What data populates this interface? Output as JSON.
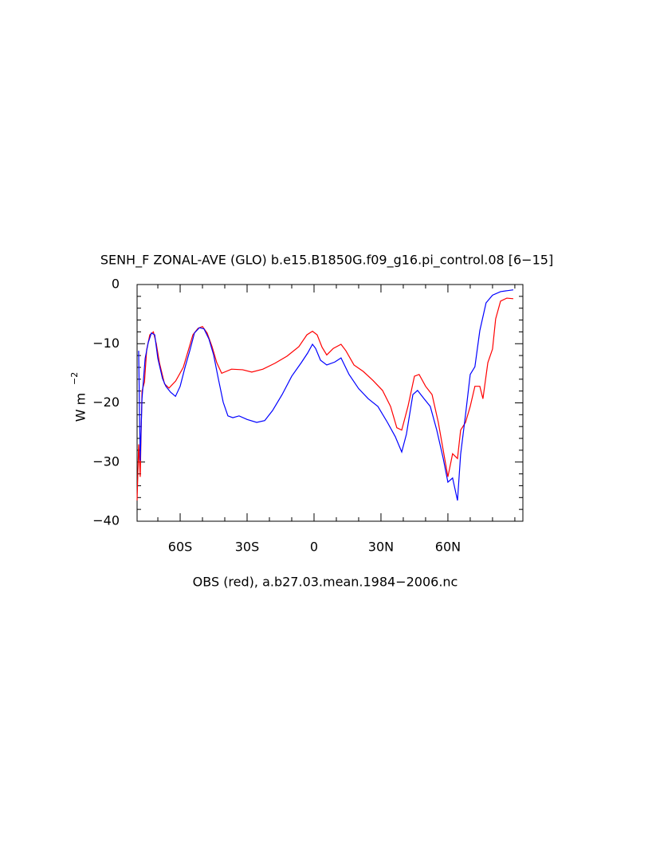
{
  "chart_data": {
    "type": "line",
    "title": "SENH_F ZONAL-AVE (GLO) b.e15.B1850G.f09_g16.pi_control.08 [6−15]",
    "xlabel": "OBS (red), a.b27.03.mean.1984−2006.nc",
    "ylabel": "W m",
    "ylabel_superscript": "−2",
    "xlim": [
      -79.3,
      93.6
    ],
    "ylim": [
      -40,
      0
    ],
    "xticks": [
      {
        "value": -60,
        "label": "60S"
      },
      {
        "value": -30,
        "label": "30S"
      },
      0,
      {
        "value": 30,
        "label": "30N"
      },
      {
        "value": 60,
        "label": "60N"
      }
    ],
    "xminor_ticks": [
      -70,
      -50,
      -40,
      -20,
      -10,
      10,
      20,
      40,
      50,
      70,
      80,
      90
    ],
    "yticks": [
      0,
      {
        "value": -10,
        "label": "−10"
      },
      {
        "value": -20,
        "label": "−20"
      },
      {
        "value": -30,
        "label": "−30"
      },
      {
        "value": -40,
        "label": "−40"
      }
    ],
    "yminor_ticks": [
      -2,
      -4,
      -6,
      -8,
      -12,
      -14,
      -16,
      -18,
      -22,
      -24,
      -26,
      -28,
      -32,
      -34,
      -36,
      -38
    ],
    "grid": false,
    "series": [
      {
        "color": "#ff0000",
        "x": [
          -79.3,
          -78.6,
          -77.9,
          -77.1,
          -76,
          -75,
          -73.6,
          -72,
          -70.7,
          -69.3,
          -67,
          -65,
          -62,
          -58.6,
          -56.4,
          -54.3,
          -52,
          -50,
          -47.9,
          -45.7,
          -43.6,
          -41.4,
          -37,
          -32,
          -27.9,
          -22.9,
          -17.5,
          -12.1,
          -6.8,
          -3.2,
          -0.7,
          1.4,
          3.6,
          5.7,
          8.6,
          12.1,
          14.3,
          17.9,
          22.1,
          26.4,
          30.7,
          34.3,
          37.1,
          39.3,
          42.1,
          45,
          47.1,
          50,
          52.9,
          55.7,
          57.9,
          60,
          62.1,
          64.3,
          65.7,
          67.9,
          70,
          72.1,
          74.3,
          75.7,
          77.9,
          80,
          81.4,
          83.6,
          86.4,
          89.3
        ],
        "values": [
          -36.5,
          -27,
          -32.5,
          -18,
          -16.5,
          -11,
          -8.5,
          -8,
          -10,
          -13.2,
          -16.8,
          -17.5,
          -16.3,
          -14,
          -11.2,
          -8.5,
          -7.4,
          -7.1,
          -8.2,
          -10.5,
          -13.2,
          -15,
          -14.3,
          -14.4,
          -14.8,
          -14.3,
          -13.3,
          -12.1,
          -10.5,
          -8.5,
          -7.9,
          -8.5,
          -10.6,
          -11.9,
          -10.8,
          -10.1,
          -11.2,
          -13.6,
          -14.7,
          -16.2,
          -17.9,
          -20.6,
          -24.2,
          -24.6,
          -20.6,
          -15.5,
          -15.2,
          -17.2,
          -18.6,
          -23.3,
          -28,
          -32.5,
          -28.6,
          -29.4,
          -24.6,
          -23.3,
          -20.6,
          -17.2,
          -17.2,
          -19.3,
          -13.2,
          -10.9,
          -5.8,
          -2.8,
          -2.3,
          -2.4
        ]
      },
      {
        "color": "#0000ff",
        "x": [
          -78.6,
          -77.9,
          -77.1,
          -75.7,
          -74.3,
          -72.9,
          -71.4,
          -70,
          -67.9,
          -66.4,
          -64.3,
          -62.1,
          -60,
          -57.9,
          -55.7,
          -53.6,
          -51.4,
          -49.3,
          -47.1,
          -45,
          -42.9,
          -40.7,
          -38.6,
          -36.4,
          -33.6,
          -30,
          -25.7,
          -22.1,
          -18.6,
          -14.3,
          -10,
          -5.7,
          -2.9,
          -0.7,
          0.7,
          2.9,
          5.7,
          9.3,
          12.1,
          15.7,
          20,
          24.3,
          28.6,
          32.9,
          36.4,
          39.3,
          41.4,
          44.3,
          46.4,
          49.3,
          52.1,
          55,
          57.9,
          60,
          62.1,
          64.3,
          65.7,
          67.9,
          70,
          72.1,
          74.3,
          77.1,
          80,
          83.6,
          89.3
        ],
        "values": [
          -11.2,
          -29.8,
          -19.3,
          -12.5,
          -9.8,
          -8.2,
          -8.5,
          -12.5,
          -15.9,
          -17.2,
          -18.2,
          -18.9,
          -17.2,
          -14.1,
          -11.2,
          -8.2,
          -7.3,
          -7.5,
          -9.2,
          -11.9,
          -15.9,
          -19.9,
          -22.2,
          -22.5,
          -22.2,
          -22.8,
          -23.3,
          -23,
          -21.3,
          -18.6,
          -15.5,
          -13.2,
          -11.6,
          -10.1,
          -10.8,
          -12.8,
          -13.6,
          -13.1,
          -12.4,
          -15.2,
          -17.6,
          -19.3,
          -20.6,
          -23.3,
          -25.7,
          -28.3,
          -25.3,
          -18.6,
          -17.9,
          -19.3,
          -20.6,
          -24.6,
          -29.4,
          -33.4,
          -32.7,
          -36.5,
          -28.7,
          -22,
          -15.2,
          -13.9,
          -7.8,
          -3.1,
          -1.8,
          -1.2,
          -0.9
        ]
      }
    ]
  }
}
